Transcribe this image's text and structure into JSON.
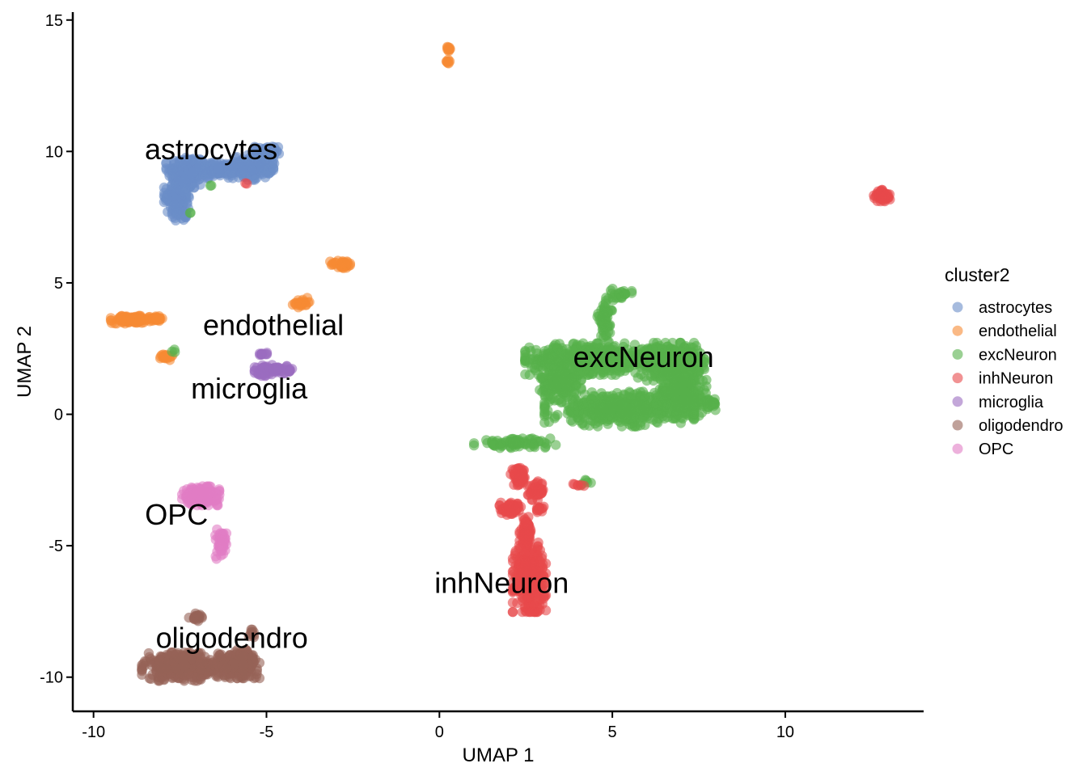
{
  "chart_data": {
    "type": "scatter",
    "xlabel": "UMAP 1",
    "ylabel": "UMAP 2",
    "xlim": [
      -10.6,
      14.0
    ],
    "ylim": [
      -11.3,
      15.3
    ],
    "xticks": [
      -10,
      -5,
      0,
      5,
      10
    ],
    "xtick_labels": [
      "-10",
      "-5",
      "0",
      "5",
      "10"
    ],
    "yticks": [
      -10,
      -5,
      0,
      5,
      10,
      15
    ],
    "ytick_labels": [
      "-10",
      "-5",
      "0",
      "5",
      "10",
      "15"
    ],
    "grid": false,
    "legend": {
      "title": "cluster2",
      "position": "right"
    },
    "series": [
      {
        "name": "astrocytes",
        "color": "#6A8DC8",
        "blobs": [
          {
            "cx": -7.3,
            "cy": 9.2,
            "rx": 0.5,
            "ry": 0.6,
            "n": 200
          },
          {
            "cx": -7.6,
            "cy": 8.3,
            "rx": 0.3,
            "ry": 0.5,
            "n": 120
          },
          {
            "cx": -7.5,
            "cy": 7.7,
            "rx": 0.2,
            "ry": 0.3,
            "n": 40
          },
          {
            "cx": -6.4,
            "cy": 9.3,
            "rx": 0.6,
            "ry": 0.25,
            "n": 120
          },
          {
            "cx": -5.4,
            "cy": 9.4,
            "rx": 0.5,
            "ry": 0.4,
            "n": 160
          },
          {
            "cx": -5.0,
            "cy": 9.9,
            "rx": 0.3,
            "ry": 0.3,
            "n": 60
          }
        ]
      },
      {
        "name": "endothelial",
        "color": "#F68B33",
        "blobs": [
          {
            "cx": 0.25,
            "cy": 13.9,
            "rx": 0.08,
            "ry": 0.1,
            "n": 10
          },
          {
            "cx": 0.25,
            "cy": 13.4,
            "rx": 0.08,
            "ry": 0.1,
            "n": 8
          },
          {
            "cx": -8.9,
            "cy": 3.6,
            "rx": 0.5,
            "ry": 0.12,
            "n": 120
          },
          {
            "cx": -8.2,
            "cy": 3.65,
            "rx": 0.2,
            "ry": 0.08,
            "n": 30
          },
          {
            "cx": -7.9,
            "cy": 2.2,
            "rx": 0.15,
            "ry": 0.12,
            "n": 20
          },
          {
            "cx": -4.0,
            "cy": 4.25,
            "rx": 0.2,
            "ry": 0.15,
            "n": 25
          },
          {
            "cx": -2.8,
            "cy": 5.7,
            "rx": 0.3,
            "ry": 0.15,
            "n": 40
          }
        ]
      },
      {
        "name": "excNeuron",
        "color": "#56B14B",
        "blobs": [
          {
            "cx": 4.4,
            "cy": 2.1,
            "rx": 1.6,
            "ry": 0.5,
            "n": 500
          },
          {
            "cx": 6.7,
            "cy": 2.0,
            "rx": 0.8,
            "ry": 0.6,
            "n": 350
          },
          {
            "cx": 3.5,
            "cy": 1.2,
            "rx": 0.5,
            "ry": 0.6,
            "n": 180
          },
          {
            "cx": 7.0,
            "cy": 0.8,
            "rx": 0.6,
            "ry": 0.8,
            "n": 300
          },
          {
            "cx": 5.2,
            "cy": 0.2,
            "rx": 1.8,
            "ry": 0.55,
            "n": 450
          },
          {
            "cx": 4.8,
            "cy": 3.6,
            "rx": 0.2,
            "ry": 0.7,
            "n": 60
          },
          {
            "cx": 5.2,
            "cy": 4.6,
            "rx": 0.3,
            "ry": 0.15,
            "n": 20
          },
          {
            "cx": 2.2,
            "cy": -1.1,
            "rx": 1.0,
            "ry": 0.15,
            "n": 80
          },
          {
            "cx": 7.8,
            "cy": 0.4,
            "rx": 0.2,
            "ry": 0.2,
            "n": 30
          },
          {
            "cx": 4.3,
            "cy": -2.6,
            "rx": 0.2,
            "ry": 0.1,
            "n": 6
          },
          {
            "cx": -6.6,
            "cy": 8.7,
            "rx": 0.05,
            "ry": 0.05,
            "n": 2
          },
          {
            "cx": -7.2,
            "cy": 7.7,
            "rx": 0.05,
            "ry": 0.05,
            "n": 2
          },
          {
            "cx": -7.7,
            "cy": 2.4,
            "rx": 0.1,
            "ry": 0.05,
            "n": 3
          },
          {
            "cx": -6.5,
            "cy": -3.2,
            "rx": 0.05,
            "ry": 0.05,
            "n": 2
          }
        ]
      },
      {
        "name": "inhNeuron",
        "color": "#E84A4B",
        "blobs": [
          {
            "cx": 2.3,
            "cy": -2.4,
            "rx": 0.2,
            "ry": 0.3,
            "n": 60
          },
          {
            "cx": 2.8,
            "cy": -2.9,
            "rx": 0.2,
            "ry": 0.3,
            "n": 50
          },
          {
            "cx": 2.1,
            "cy": -3.6,
            "rx": 0.3,
            "ry": 0.2,
            "n": 60
          },
          {
            "cx": 2.5,
            "cy": -4.5,
            "rx": 0.15,
            "ry": 0.5,
            "n": 80
          },
          {
            "cx": 2.6,
            "cy": -6.2,
            "rx": 0.4,
            "ry": 1.1,
            "n": 350
          },
          {
            "cx": 2.9,
            "cy": -3.6,
            "rx": 0.1,
            "ry": 0.1,
            "n": 15
          },
          {
            "cx": 12.8,
            "cy": 8.3,
            "rx": 0.2,
            "ry": 0.2,
            "n": 60
          },
          {
            "cx": 4.1,
            "cy": -2.7,
            "rx": 0.2,
            "ry": 0.1,
            "n": 6
          },
          {
            "cx": -5.6,
            "cy": 8.8,
            "rx": 0.05,
            "ry": 0.05,
            "n": 2
          }
        ]
      },
      {
        "name": "microglia",
        "color": "#9B6DBF",
        "blobs": [
          {
            "cx": -4.8,
            "cy": 1.7,
            "rx": 0.45,
            "ry": 0.15,
            "n": 80
          },
          {
            "cx": -5.1,
            "cy": 1.5,
            "rx": 0.15,
            "ry": 0.1,
            "n": 15
          },
          {
            "cx": -5.1,
            "cy": 2.3,
            "rx": 0.1,
            "ry": 0.05,
            "n": 12
          }
        ]
      },
      {
        "name": "oligodendro",
        "color": "#966257",
        "blobs": [
          {
            "cx": -7.4,
            "cy": -9.6,
            "rx": 1.0,
            "ry": 0.45,
            "n": 400
          },
          {
            "cx": -5.8,
            "cy": -9.5,
            "rx": 0.5,
            "ry": 0.45,
            "n": 250
          },
          {
            "cx": -7.0,
            "cy": -7.7,
            "rx": 0.2,
            "ry": 0.15,
            "n": 20
          },
          {
            "cx": -5.4,
            "cy": -8.3,
            "rx": 0.1,
            "ry": 0.15,
            "n": 10
          }
        ]
      },
      {
        "name": "OPC",
        "color": "#E17DC4",
        "blobs": [
          {
            "cx": -6.9,
            "cy": -3.1,
            "rx": 0.45,
            "ry": 0.3,
            "n": 200
          },
          {
            "cx": -6.3,
            "cy": -4.9,
            "rx": 0.15,
            "ry": 0.5,
            "n": 50
          }
        ]
      }
    ],
    "annotations": [
      {
        "text": "astrocytes",
        "x": -6.6,
        "y": 10.0
      },
      {
        "text": "endothelial",
        "x": -4.8,
        "y": 3.3
      },
      {
        "text": "microglia",
        "x": -5.5,
        "y": 0.9
      },
      {
        "text": "excNeuron",
        "x": 5.9,
        "y": 2.1
      },
      {
        "text": "OPC",
        "x": -7.6,
        "y": -3.9
      },
      {
        "text": "inhNeuron",
        "x": 1.8,
        "y": -6.5
      },
      {
        "text": "oligodendro",
        "x": -6.0,
        "y": -8.6
      }
    ]
  }
}
